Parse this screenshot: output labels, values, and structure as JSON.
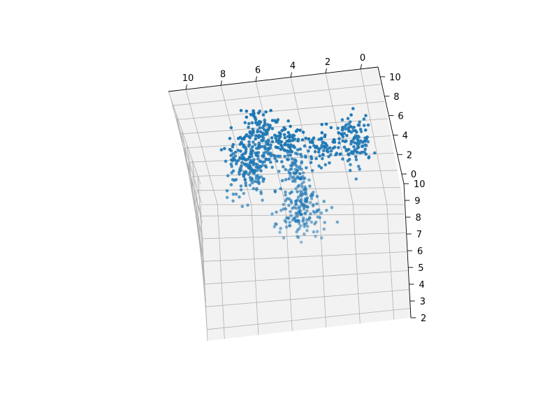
{
  "chart_data": {
    "type": "scatter",
    "projection": "3d",
    "title": "",
    "xlabel": "",
    "ylabel": "",
    "zlabel": "",
    "xlim": [
      -1,
      11
    ],
    "ylim": [
      -1,
      11
    ],
    "zlim": [
      2,
      10
    ],
    "x_ticks": [
      "0",
      "2",
      "4",
      "6",
      "8",
      "10"
    ],
    "y_ticks": [
      "0",
      "2",
      "4",
      "6",
      "8",
      "10"
    ],
    "z_ticks": [
      "2",
      "3",
      "4",
      "5",
      "6",
      "7",
      "8",
      "9",
      "10"
    ],
    "grid": true,
    "marker_color": "#1f77b4",
    "pane_color": "#f2f2f2",
    "series": [
      {
        "clusters": [
          {
            "center": [
              4.7,
              7.6,
              6.2
            ],
            "spread": [
              0.25,
              0.25,
              0.6
            ],
            "count": 60
          },
          {
            "center": [
              6.6,
              7.4,
              8.6
            ],
            "spread": [
              0.45,
              0.45,
              0.9
            ],
            "count": 110
          },
          {
            "center": [
              7.9,
              4.8,
              8.4
            ],
            "spread": [
              0.5,
              0.5,
              0.9
            ],
            "count": 100
          },
          {
            "center": [
              7.2,
              5.6,
              8.0
            ],
            "spread": [
              0.6,
              0.6,
              1.0
            ],
            "count": 90
          },
          {
            "center": [
              5.4,
              4.9,
              9.3
            ],
            "spread": [
              0.5,
              0.5,
              0.6
            ],
            "count": 90
          },
          {
            "center": [
              3.2,
              4.6,
              9.3
            ],
            "spread": [
              0.6,
              0.6,
              0.6
            ],
            "count": 80
          },
          {
            "center": [
              1.2,
              4.8,
              9.1
            ],
            "spread": [
              0.45,
              0.6,
              0.6
            ],
            "count": 70
          },
          {
            "center": [
              1.0,
              7.2,
              8.6
            ],
            "spread": [
              0.4,
              0.4,
              0.5
            ],
            "count": 35
          },
          {
            "center": [
              5.0,
              4.2,
              6.0
            ],
            "spread": [
              0.6,
              0.4,
              0.8
            ],
            "count": 90
          },
          {
            "center": [
              4.8,
              3.8,
              5.6
            ],
            "spread": [
              0.8,
              0.35,
              0.5
            ],
            "count": 60
          },
          {
            "center": [
              4.2,
              6.0,
              5.8
            ],
            "spread": [
              0.2,
              0.2,
              0.4
            ],
            "count": 15
          }
        ]
      }
    ]
  }
}
